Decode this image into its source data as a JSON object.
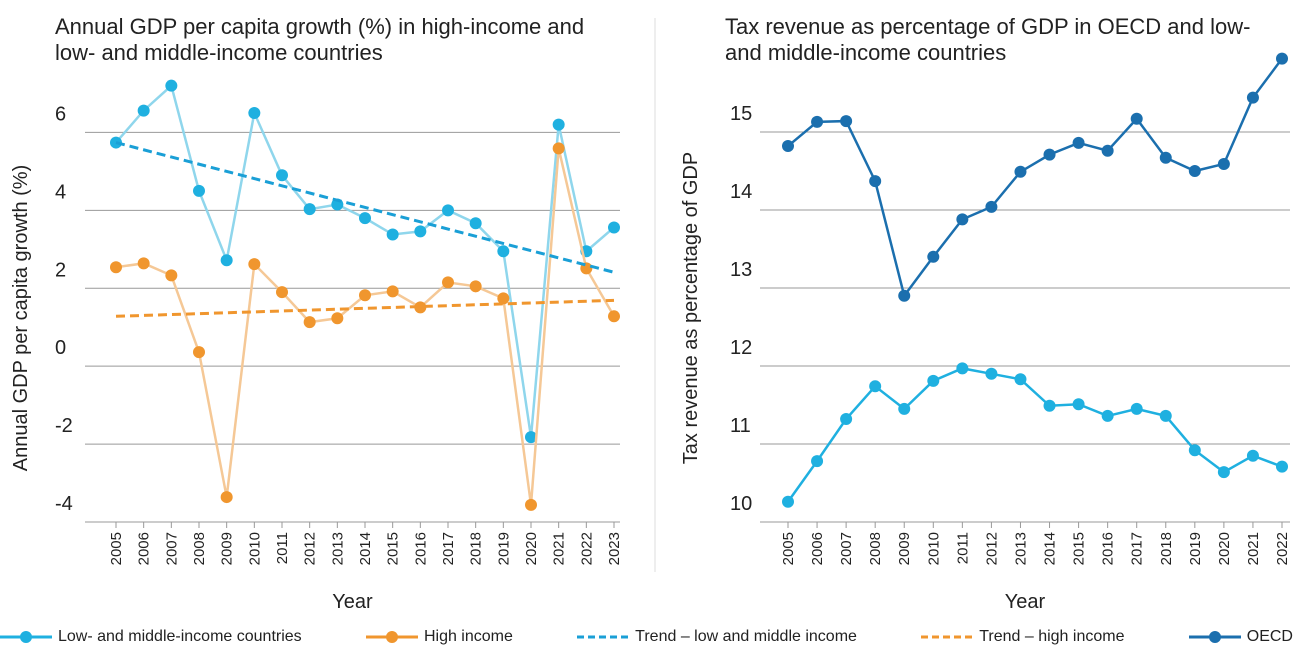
{
  "chart_data": [
    {
      "type": "line",
      "title": "Annual GDP per capita growth (%) in high-income and low- and middle-income countries",
      "xlabel": "Year",
      "ylabel": "Annual GDP per capita growth (%)",
      "categories": [
        "2005",
        "2006",
        "2007",
        "2008",
        "2009",
        "2010",
        "2011",
        "2012",
        "2013",
        "2014",
        "2015",
        "2016",
        "2017",
        "2018",
        "2019",
        "2020",
        "2021",
        "2022",
        "2023"
      ],
      "ylim": [
        -4,
        7.5
      ],
      "yticks": [
        -4,
        -2,
        0,
        2,
        4,
        6
      ],
      "grid": true,
      "series": [
        {
          "name": "Low- and middle-income countries",
          "color": "#1fb0e0",
          "line_color": "#8fd6ec",
          "values": [
            5.74,
            6.56,
            7.2,
            4.5,
            2.72,
            6.5,
            4.9,
            4.03,
            4.15,
            3.8,
            3.38,
            3.46,
            4.0,
            3.67,
            2.95,
            -1.82,
            6.2,
            2.95,
            3.56
          ]
        },
        {
          "name": "High income",
          "color": "#f0962e",
          "line_color": "#f5c896",
          "values": [
            2.54,
            2.64,
            2.33,
            0.36,
            -3.36,
            2.62,
            1.9,
            1.13,
            1.23,
            1.82,
            1.92,
            1.51,
            2.15,
            2.05,
            1.74,
            -3.56,
            5.59,
            2.51,
            1.28
          ]
        },
        {
          "name": "Trend – low and middle income",
          "color": "#1a9fd6",
          "dashed": true,
          "x": [
            "2005",
            "2023"
          ],
          "values": [
            5.74,
            2.41
          ]
        },
        {
          "name": "Trend – high income",
          "color": "#f0962e",
          "dashed": true,
          "x": [
            "2005",
            "2023"
          ],
          "values": [
            1.28,
            1.69
          ]
        }
      ]
    },
    {
      "type": "line",
      "title": "Tax revenue as percentage of GDP in OECD and low- and middle-income countries",
      "xlabel": "Year",
      "ylabel": "Tax revenue as percentage of GDP",
      "categories": [
        "2005",
        "2006",
        "2007",
        "2008",
        "2009",
        "2010",
        "2011",
        "2012",
        "2013",
        "2014",
        "2015",
        "2016",
        "2017",
        "2018",
        "2019",
        "2020",
        "2021",
        "2022"
      ],
      "ylim": [
        10,
        16
      ],
      "yticks": [
        10,
        11,
        12,
        13,
        14,
        15
      ],
      "grid": true,
      "series": [
        {
          "name": "OECD",
          "color": "#1b6fae",
          "line_color": "#1b6fae",
          "values": [
            14.82,
            15.13,
            15.14,
            14.37,
            12.9,
            13.4,
            13.88,
            14.04,
            14.49,
            14.71,
            14.86,
            14.76,
            15.17,
            14.67,
            14.5,
            14.59,
            15.44,
            15.94
          ]
        },
        {
          "name": "Low- and middle-income countries",
          "color": "#1fb0e0",
          "line_color": "#1fb0e0",
          "values": [
            10.26,
            10.78,
            11.32,
            11.74,
            11.45,
            11.81,
            11.97,
            11.9,
            11.83,
            11.49,
            11.51,
            11.36,
            11.45,
            11.36,
            10.92,
            10.64,
            10.85,
            10.71
          ]
        }
      ]
    }
  ]
}
